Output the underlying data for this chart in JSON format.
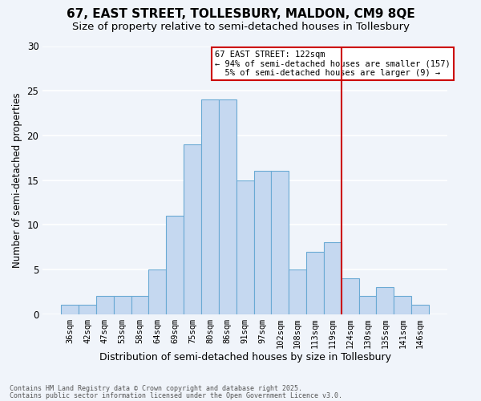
{
  "title": "67, EAST STREET, TOLLESBURY, MALDON, CM9 8QE",
  "subtitle": "Size of property relative to semi-detached houses in Tollesbury",
  "xlabel": "Distribution of semi-detached houses by size in Tollesbury",
  "ylabel": "Number of semi-detached properties",
  "bins": [
    "36sqm",
    "42sqm",
    "47sqm",
    "53sqm",
    "58sqm",
    "64sqm",
    "69sqm",
    "75sqm",
    "80sqm",
    "86sqm",
    "91sqm",
    "97sqm",
    "102sqm",
    "108sqm",
    "113sqm",
    "119sqm",
    "124sqm",
    "130sqm",
    "135sqm",
    "141sqm",
    "146sqm"
  ],
  "values": [
    1,
    1,
    2,
    2,
    2,
    5,
    11,
    19,
    24,
    24,
    15,
    16,
    16,
    5,
    7,
    8,
    4,
    2,
    3,
    2,
    1
  ],
  "bar_color": "#c5d8f0",
  "bar_edge_color": "#6aaad4",
  "marker_label": "67 EAST STREET: 122sqm",
  "pct_smaller": 94,
  "n_smaller": 157,
  "pct_larger": 5,
  "n_larger": 9,
  "vline_color": "#cc0000",
  "annotation_box_color": "#cc0000",
  "footer1": "Contains HM Land Registry data © Crown copyright and database right 2025.",
  "footer2": "Contains public sector information licensed under the Open Government Licence v3.0.",
  "bg_color": "#f0f4fa",
  "plot_bg_color": "#f0f4fa",
  "title_fontsize": 11,
  "subtitle_fontsize": 9.5,
  "tick_fontsize": 7.5,
  "ylabel_fontsize": 8.5,
  "xlabel_fontsize": 9,
  "ylim": [
    0,
    30
  ]
}
